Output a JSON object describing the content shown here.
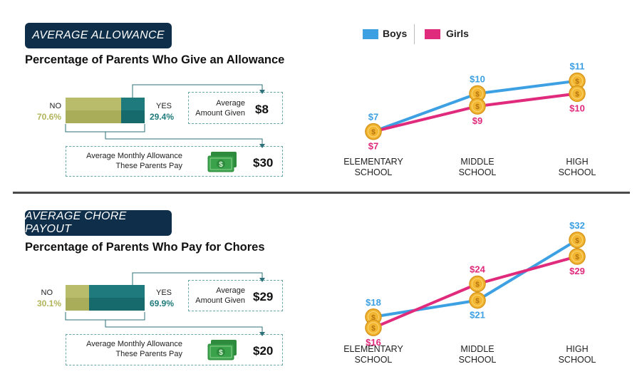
{
  "colors": {
    "boys": "#3da0e3",
    "girls": "#e02a7c",
    "navy": "#0f2e4a",
    "olive": "#b9bc6a",
    "teal": "#1e7a7c",
    "coin": "#f2b632",
    "cash": "#3aa24a"
  },
  "legend": {
    "boys": "Boys",
    "girls": "Girls"
  },
  "allowance": {
    "tag": "AVERAGE ALLOWANCE",
    "subtitle": "Percentage of Parents Who Give an Allowance",
    "no_label": "NO",
    "no_pct": "70.6%",
    "yes_label": "YES",
    "yes_pct": "29.4%",
    "no_value": 70.6,
    "yes_value": 29.4,
    "avg_line1": "Average",
    "avg_line2": "Amount Given",
    "avg_amount": "$8",
    "monthly_line1": "Average Monthly Allowance",
    "monthly_line2": "These Parents Pay",
    "monthly_amount": "$30"
  },
  "chores": {
    "tag": "AVERAGE CHORE PAYOUT",
    "subtitle": "Percentage of Parents Who Pay for Chores",
    "no_label": "NO",
    "no_pct": "30.1%",
    "yes_label": "YES",
    "yes_pct": "69.9%",
    "no_value": 30.1,
    "yes_value": 69.9,
    "avg_line1": "Average",
    "avg_line2": "Amount Given",
    "avg_amount": "$29",
    "monthly_line1": "Average Monthly Allowance",
    "monthly_line2": "These Parents Pay",
    "monthly_amount": "$20"
  },
  "chart_data": [
    {
      "type": "line",
      "categories": [
        [
          "ELEMENTARY",
          "SCHOOL"
        ],
        [
          "MIDDLE",
          "SCHOOL"
        ],
        [
          "HIGH",
          "SCHOOL"
        ]
      ],
      "series": [
        {
          "name": "Boys",
          "values": [
            7,
            10,
            11
          ],
          "labels": [
            "$7",
            "$10",
            "$11"
          ]
        },
        {
          "name": "Girls",
          "values": [
            7,
            9,
            10
          ],
          "labels": [
            "$7",
            "$9",
            "$10"
          ]
        }
      ],
      "ylim": [
        4,
        13
      ],
      "legend": "top-left",
      "grid": false
    },
    {
      "type": "line",
      "categories": [
        [
          "ELEMENTARY",
          "SCHOOL"
        ],
        [
          "MIDDLE",
          "SCHOOL"
        ],
        [
          "HIGH",
          "SCHOOL"
        ]
      ],
      "series": [
        {
          "name": "Boys",
          "values": [
            18,
            21,
            32
          ],
          "labels": [
            "$18",
            "$21",
            "$32"
          ]
        },
        {
          "name": "Girls",
          "values": [
            16,
            24,
            29
          ],
          "labels": [
            "$16",
            "$24",
            "$29"
          ]
        }
      ],
      "ylim": [
        12,
        36
      ],
      "grid": false
    }
  ]
}
